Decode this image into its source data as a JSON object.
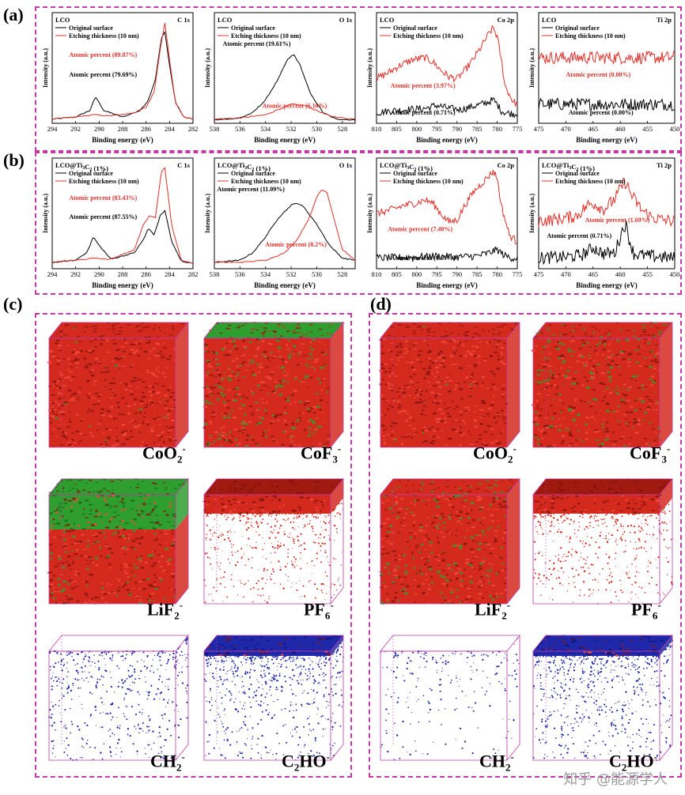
{
  "panels": {
    "a": "(a)",
    "b": "(b)",
    "c": "(c)",
    "d": "(d)"
  },
  "chart_data": [
    {
      "id": "a1",
      "type": "line",
      "sample": "LCO",
      "element": "C 1s",
      "legend": [
        "Original surface",
        "Etching thickness (10 nm)"
      ],
      "xlabel": "Binding energy (eV)",
      "ylabel": "Intensity (a.u.)",
      "xlim": [
        294,
        282
      ],
      "ticks": [
        294,
        292,
        290,
        288,
        286,
        284,
        282
      ],
      "annotations": [
        {
          "text": "Atomic percent (89.87%)",
          "color": "red"
        },
        {
          "text": "Atomic percent (79.69%)",
          "color": "black"
        }
      ],
      "series": [
        {
          "name": "Original surface",
          "color": "#000000",
          "x": [
            294,
            292,
            290.8,
            290.3,
            289.6,
            288,
            286.5,
            285.8,
            285.2,
            284.7,
            284.4,
            284.0,
            283.5,
            282.8,
            282
          ],
          "y": [
            0.04,
            0.06,
            0.12,
            0.25,
            0.12,
            0.06,
            0.12,
            0.22,
            0.42,
            0.8,
            0.86,
            0.55,
            0.2,
            0.06,
            0.04
          ]
        },
        {
          "name": "Etching thickness (10 nm)",
          "color": "#e0302a",
          "x": [
            294,
            292,
            290.5,
            289,
            287,
            286,
            285.3,
            284.8,
            284.4,
            284.0,
            283.5,
            282.8,
            282
          ],
          "y": [
            0.04,
            0.06,
            0.08,
            0.07,
            0.1,
            0.15,
            0.3,
            0.7,
            0.95,
            0.6,
            0.2,
            0.06,
            0.04
          ]
        }
      ]
    },
    {
      "id": "a2",
      "type": "line",
      "sample": "LCO",
      "element": "O 1s",
      "legend": [
        "Original surface",
        "Etching thickness (10 nm)"
      ],
      "xlabel": "Binding energy (eV)",
      "ylabel": "Intensity (a.u.)",
      "xlim": [
        538,
        527
      ],
      "ticks": [
        538,
        536,
        534,
        532,
        530,
        528
      ],
      "annotations": [
        {
          "text": "Atomic percent (19.61%)",
          "color": "black"
        },
        {
          "text": "Atomic percent (6.16%)",
          "color": "red"
        }
      ],
      "series": [
        {
          "name": "Original surface",
          "color": "#000000",
          "x": [
            538,
            536,
            535,
            534,
            533,
            532.3,
            531.8,
            531.3,
            530.5,
            529.5,
            528.5,
            527
          ],
          "y": [
            0.03,
            0.05,
            0.1,
            0.22,
            0.42,
            0.6,
            0.65,
            0.55,
            0.28,
            0.1,
            0.04,
            0.03
          ]
        },
        {
          "name": "Etching thickness (10 nm)",
          "color": "#e0302a",
          "x": [
            538,
            536,
            534,
            533,
            532,
            531,
            530,
            529,
            528,
            527
          ],
          "y": [
            0.04,
            0.05,
            0.08,
            0.13,
            0.18,
            0.17,
            0.12,
            0.07,
            0.05,
            0.04
          ]
        }
      ]
    },
    {
      "id": "a3",
      "type": "line",
      "sample": "LCO",
      "element": "Co 2p",
      "legend": [
        "Original surface",
        "Etching thickness (10 nm)"
      ],
      "xlabel": "Binding energy (eV)",
      "ylabel": "Intensity (a.u.)",
      "xlim": [
        810,
        775
      ],
      "ticks": [
        810,
        805,
        800,
        795,
        790,
        785,
        780,
        775
      ],
      "annotations": [
        {
          "text": "Atomic percent (3.97%)",
          "color": "red"
        },
        {
          "text": "Atomic percent (0.71%)",
          "color": "black"
        }
      ],
      "series": [
        {
          "name": "Original surface",
          "color": "#000000",
          "x": [
            810,
            806,
            802,
            798,
            795,
            792,
            789,
            786,
            783,
            781,
            780,
            779,
            778,
            776,
            775
          ],
          "y": [
            0.1,
            0.12,
            0.13,
            0.14,
            0.17,
            0.14,
            0.13,
            0.16,
            0.19,
            0.22,
            0.18,
            0.12,
            0.1,
            0.09,
            0.09
          ]
        },
        {
          "name": "Etching thickness (10 nm)",
          "color": "#e0302a",
          "x": [
            810,
            807,
            804,
            801,
            798,
            796,
            794,
            792,
            790,
            788,
            786,
            784,
            782,
            781,
            780,
            779,
            778,
            776,
            775
          ],
          "y": [
            0.42,
            0.48,
            0.55,
            0.6,
            0.62,
            0.58,
            0.5,
            0.44,
            0.42,
            0.5,
            0.6,
            0.72,
            0.85,
            0.9,
            0.82,
            0.6,
            0.35,
            0.2,
            0.18
          ]
        }
      ]
    },
    {
      "id": "a4",
      "type": "line",
      "sample": "LCO",
      "element": "Ti 2p",
      "legend": [
        "Original surface",
        "Etching thickness (10 nm)"
      ],
      "xlabel": "Binding energy (eV)",
      "ylabel": "Intensity (a.u.)",
      "xlim": [
        475,
        450
      ],
      "ticks": [
        475,
        470,
        465,
        460,
        455,
        450
      ],
      "annotations": [
        {
          "text": "Atomic percent (0.00%)",
          "color": "red"
        },
        {
          "text": "Atomic percent (0.00%)",
          "color": "black"
        }
      ],
      "series": [
        {
          "name": "Original surface",
          "color": "#000000",
          "x": [
            475,
            450
          ],
          "y": [
            0.18,
            0.18
          ]
        },
        {
          "name": "Etching thickness (10 nm)",
          "color": "#e0302a",
          "x": [
            475,
            450
          ],
          "y": [
            0.62,
            0.62
          ]
        }
      ]
    },
    {
      "id": "b1",
      "type": "line",
      "sample": "LCO@Ti3C2 (1%)",
      "element": "C 1s",
      "legend": [
        "Original surface",
        "Etching thickness (10 nm)"
      ],
      "xlabel": "Binding energy (eV)",
      "ylabel": "Intensity (a.u.)",
      "xlim": [
        294,
        282
      ],
      "ticks": [
        294,
        292,
        290,
        288,
        286,
        284,
        282
      ],
      "annotations": [
        {
          "text": "Atomic percent (83.43%)",
          "color": "red"
        },
        {
          "text": "Atomic percent (87.55%)",
          "color": "black"
        }
      ],
      "series": [
        {
          "name": "Original surface",
          "color": "#000000",
          "x": [
            294,
            292,
            291,
            290.5,
            290,
            289,
            287,
            286.2,
            285.8,
            285.3,
            284.8,
            284.4,
            283.8,
            283,
            282
          ],
          "y": [
            0.06,
            0.08,
            0.16,
            0.3,
            0.22,
            0.09,
            0.15,
            0.28,
            0.38,
            0.32,
            0.5,
            0.55,
            0.25,
            0.07,
            0.05
          ]
        },
        {
          "name": "Etching thickness (10 nm)",
          "color": "#e0302a",
          "x": [
            294,
            292,
            290.5,
            289,
            287,
            286.2,
            285.7,
            285.2,
            284.7,
            284.4,
            283.8,
            283,
            282
          ],
          "y": [
            0.06,
            0.08,
            0.1,
            0.09,
            0.18,
            0.42,
            0.5,
            0.48,
            0.92,
            0.95,
            0.4,
            0.08,
            0.05
          ]
        }
      ]
    },
    {
      "id": "b2",
      "type": "line",
      "sample": "LCO@Ti3C2 (1%)",
      "element": "O 1s",
      "legend": [
        "Original surface",
        "Etching thickness (10 nm)"
      ],
      "xlabel": "Binding energy (eV)",
      "ylabel": "Intensity (a.u.)",
      "xlim": [
        538,
        527
      ],
      "ticks": [
        538,
        536,
        534,
        532,
        530,
        528
      ],
      "annotations": [
        {
          "text": "Atomic percent (11.09%)",
          "color": "black"
        },
        {
          "text": "Atomic percent (8.2%)",
          "color": "red"
        }
      ],
      "series": [
        {
          "name": "Original surface",
          "color": "#000000",
          "x": [
            538,
            536,
            535,
            534,
            533,
            532,
            531.5,
            531,
            530,
            529,
            528,
            527
          ],
          "y": [
            0.06,
            0.08,
            0.15,
            0.3,
            0.48,
            0.6,
            0.62,
            0.58,
            0.42,
            0.22,
            0.1,
            0.08
          ]
        },
        {
          "name": "Etching thickness (10 nm)",
          "color": "#e0302a",
          "x": [
            538,
            536,
            534,
            532.5,
            531.5,
            530.5,
            530,
            529.6,
            529.2,
            528.6,
            528,
            527
          ],
          "y": [
            0.06,
            0.06,
            0.08,
            0.15,
            0.28,
            0.5,
            0.68,
            0.75,
            0.72,
            0.45,
            0.18,
            0.08
          ]
        }
      ]
    },
    {
      "id": "b3",
      "type": "line",
      "sample": "LCO@Ti3C2 (1%)",
      "element": "Co 2p",
      "legend": [
        "Original surface",
        "Etching thickness (10 nm)"
      ],
      "xlabel": "Binding energy (eV)",
      "ylabel": "Intensity (a.u.)",
      "xlim": [
        810,
        775
      ],
      "ticks": [
        810,
        805,
        800,
        795,
        790,
        785,
        780,
        775
      ],
      "annotations": [
        {
          "text": "Atomic percent (7.40%)",
          "color": "red"
        },
        {
          "text": "Atomic percent (0.67%)",
          "color": "black"
        }
      ],
      "series": [
        {
          "name": "Original surface",
          "color": "#000000",
          "x": [
            810,
            800,
            795,
            790,
            785,
            782,
            780,
            778,
            776,
            775
          ],
          "y": [
            0.1,
            0.11,
            0.12,
            0.11,
            0.12,
            0.15,
            0.18,
            0.12,
            0.1,
            0.1
          ]
        },
        {
          "name": "Etching thickness (10 nm)",
          "color": "#e0302a",
          "x": [
            810,
            806,
            803,
            800,
            798,
            796,
            794,
            792,
            790,
            788,
            786,
            784,
            782,
            781,
            780,
            779,
            777,
            775
          ],
          "y": [
            0.52,
            0.56,
            0.6,
            0.62,
            0.65,
            0.62,
            0.52,
            0.44,
            0.46,
            0.6,
            0.72,
            0.8,
            0.88,
            0.92,
            0.86,
            0.6,
            0.32,
            0.25
          ]
        }
      ]
    },
    {
      "id": "b4",
      "type": "line",
      "sample": "LCO@Ti3C2 (1%)",
      "element": "Ti 2p",
      "legend": [
        "Original surface",
        "Etching thickness (10 nm)"
      ],
      "xlabel": "Binding energy (eV)",
      "ylabel": "Intensity (a.u.)",
      "xlim": [
        475,
        450
      ],
      "ticks": [
        475,
        470,
        465,
        460,
        455,
        450
      ],
      "annotations": [
        {
          "text": "Atomic percent (1.69%)",
          "color": "red"
        },
        {
          "text": "Atomic percent (0.71%)",
          "color": "black"
        }
      ],
      "series": [
        {
          "name": "Original surface",
          "color": "#000000",
          "x": [
            475,
            470,
            467,
            465,
            463,
            461,
            459.5,
            459,
            458.5,
            457.5,
            455,
            452,
            450
          ],
          "y": [
            0.1,
            0.11,
            0.13,
            0.2,
            0.14,
            0.15,
            0.38,
            0.42,
            0.3,
            0.14,
            0.12,
            0.11,
            0.1
          ]
        },
        {
          "name": "Etching thickness (10 nm)",
          "color": "#e0302a",
          "x": [
            475,
            471,
            468,
            466,
            465,
            463,
            461,
            459.5,
            459,
            458,
            456,
            454,
            452,
            450
          ],
          "y": [
            0.45,
            0.47,
            0.5,
            0.6,
            0.62,
            0.56,
            0.66,
            0.8,
            0.82,
            0.7,
            0.55,
            0.48,
            0.46,
            0.45
          ]
        }
      ]
    }
  ],
  "cubes": {
    "c": [
      {
        "ion": "CoO",
        "sub": "2",
        "sup": "-",
        "phase": "red-full"
      },
      {
        "ion": "CoF",
        "sub": "3",
        "sup": "-",
        "phase": "red-green-top"
      },
      {
        "ion": "LiF",
        "sub": "2",
        "sup": "-",
        "phase": "green-top-red-bottom"
      },
      {
        "ion": "PF",
        "sub": "6",
        "sup": "-",
        "phase": "red-top-sparse"
      },
      {
        "ion": "CH",
        "sub": "2",
        "sup": "-",
        "phase": "blue-sparse"
      },
      {
        "ion": "C",
        "sub": "2",
        "extra": "HO",
        "sup": "-",
        "phase": "blue-top"
      }
    ],
    "d": [
      {
        "ion": "CoO",
        "sub": "2",
        "sup": "-",
        "phase": "red-full"
      },
      {
        "ion": "CoF",
        "sub": "3",
        "sup": "-",
        "phase": "red-green-mix"
      },
      {
        "ion": "LiF",
        "sub": "2",
        "sup": "-",
        "phase": "red-green-mix"
      },
      {
        "ion": "PF",
        "sub": "6",
        "sup": "-",
        "phase": "red-top-sparse"
      },
      {
        "ion": "CH",
        "sub": "2",
        "sup": "-",
        "phase": "blue-very-sparse"
      },
      {
        "ion": "C",
        "sub": "2",
        "extra": "HO",
        "sup": "-",
        "phase": "blue-top"
      }
    ]
  },
  "colors": {
    "frame": "#c03aa8",
    "original": "#000000",
    "etched": "#e0302a",
    "red": "#d42a1e",
    "green": "#2e9e2e",
    "blue": "#1e28a8"
  },
  "watermark": "知乎 @能源学人"
}
